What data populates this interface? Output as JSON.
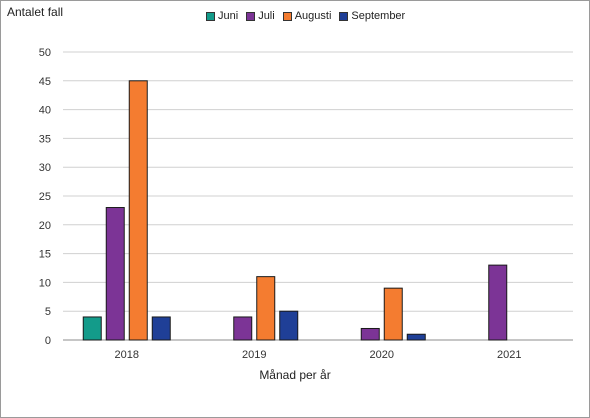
{
  "chart_data": {
    "type": "bar",
    "title": "",
    "ylabel": "Antalet fall",
    "xlabel": "Månad per år",
    "categories": [
      "2018",
      "2019",
      "2020",
      "2021"
    ],
    "ylim": [
      0,
      50
    ],
    "yticks": [
      0,
      5,
      10,
      15,
      20,
      25,
      30,
      35,
      40,
      45,
      50
    ],
    "grid": true,
    "legend_position": "top-center",
    "series": [
      {
        "name": "Juni",
        "color": "#139b8a",
        "values": [
          4,
          0,
          0,
          0
        ]
      },
      {
        "name": "Juli",
        "color": "#7c3496",
        "values": [
          23,
          4,
          2,
          13
        ]
      },
      {
        "name": "Augusti",
        "color": "#f47c30",
        "values": [
          45,
          11,
          9,
          0
        ]
      },
      {
        "name": "September",
        "color": "#1f3f97",
        "values": [
          4,
          5,
          1,
          0
        ]
      }
    ]
  }
}
